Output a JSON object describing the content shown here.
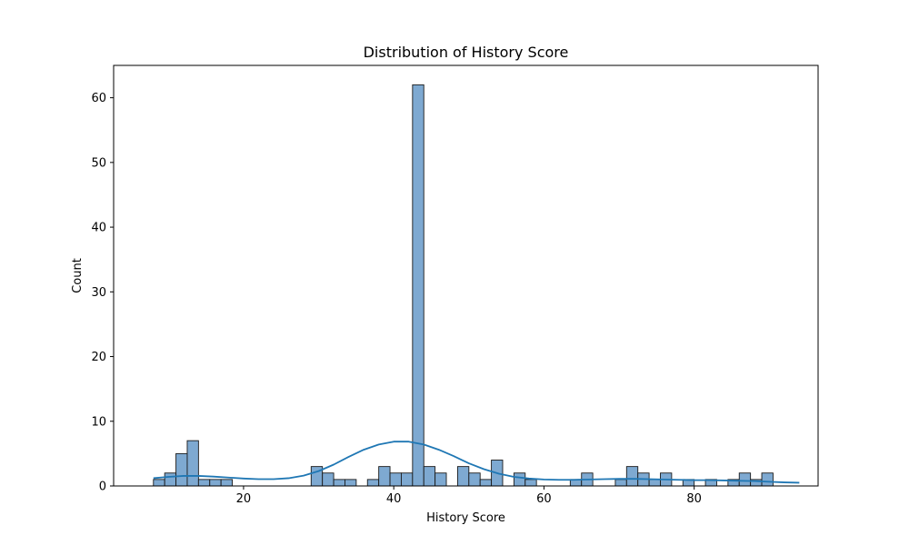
{
  "chart_data": {
    "type": "bar",
    "title": "Distribution of History Score",
    "xlabel": "History Score",
    "ylabel": "Count",
    "xlim": [
      2.7,
      96.5
    ],
    "ylim": [
      0,
      65
    ],
    "x_ticks": [
      20,
      40,
      60,
      80
    ],
    "y_ticks": [
      0,
      10,
      20,
      30,
      40,
      50,
      60
    ],
    "bin_edges": [
      8.0,
      9.5,
      11.0,
      12.5,
      14.0,
      15.5,
      17.0,
      18.5,
      20.0,
      21.5,
      23.0,
      24.5,
      26.0,
      27.5,
      29.0,
      30.5,
      32.0,
      33.5,
      35.0,
      36.5,
      38.0,
      39.5,
      41.0,
      42.5,
      44.0,
      45.5,
      47.0,
      48.5,
      50.0,
      51.5,
      53.0,
      54.5,
      56.0,
      57.5,
      59.0,
      60.5,
      62.0,
      63.5,
      65.0,
      66.5,
      68.0,
      69.5,
      71.0,
      72.5,
      74.0,
      75.5,
      77.0,
      78.5,
      80.0,
      81.5,
      83.0,
      84.5,
      86.0,
      87.5,
      89.0,
      90.5,
      92.0,
      93.5,
      95.0
    ],
    "counts": [
      1,
      2,
      5,
      7,
      1,
      1,
      1,
      0,
      0,
      0,
      0,
      0,
      0,
      0,
      3,
      2,
      1,
      1,
      0,
      1,
      3,
      2,
      2,
      62,
      3,
      2,
      0,
      3,
      2,
      1,
      4,
      0,
      2,
      1,
      0,
      0,
      0,
      1,
      2,
      0,
      0,
      1,
      3,
      2,
      1,
      2,
      0,
      1,
      0,
      1,
      0,
      1,
      2,
      1,
      2,
      0,
      0,
      0,
      1
    ],
    "kde": {
      "x": [
        8,
        10,
        12,
        14,
        16,
        18,
        20,
        22,
        24,
        26,
        28,
        30,
        32,
        34,
        36,
        38,
        40,
        42,
        44,
        46,
        48,
        50,
        52,
        54,
        56,
        58,
        60,
        62,
        64,
        66,
        68,
        70,
        72,
        74,
        76,
        78,
        80,
        82,
        84,
        86,
        88,
        90,
        92,
        94
      ],
      "y": [
        1.2,
        1.4,
        1.55,
        1.55,
        1.45,
        1.3,
        1.15,
        1.05,
        1.05,
        1.2,
        1.6,
        2.3,
        3.3,
        4.5,
        5.6,
        6.4,
        6.85,
        6.85,
        6.4,
        5.6,
        4.6,
        3.5,
        2.6,
        1.9,
        1.4,
        1.15,
        1.0,
        0.95,
        0.95,
        1.0,
        1.05,
        1.1,
        1.1,
        1.05,
        1.0,
        0.95,
        0.9,
        0.9,
        0.85,
        0.8,
        0.75,
        0.65,
        0.55,
        0.5
      ]
    },
    "bar_color": "#7ea9d1",
    "bar_edge_color": "#1a1a1a",
    "kde_color": "#1f77b4",
    "grid": false,
    "legend": "none"
  }
}
